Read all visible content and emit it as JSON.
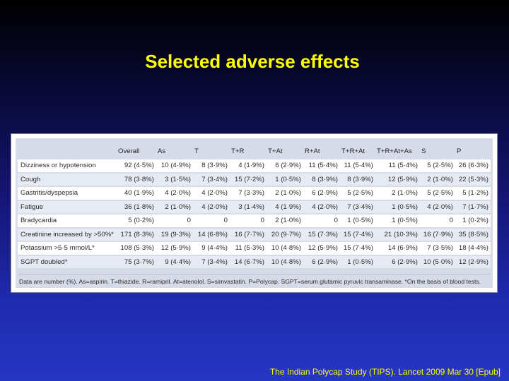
{
  "slide": {
    "title": "Selected adverse effects",
    "citation": "The Indian Polycap Study (TIPS). Lancet 2009 Mar 30 [Epub]"
  },
  "table": {
    "headers": [
      "",
      "Overall",
      "As",
      "T",
      "T+R",
      "T+At",
      "R+At",
      "T+R+At",
      "T+R+At+As",
      "S",
      "P"
    ],
    "rows": [
      [
        "Dizziness or hypotension",
        "92 (4·5%)",
        "10 (4·9%)",
        "8 (3·9%)",
        "4 (1·9%)",
        "6 (2·9%)",
        "11 (5·4%)",
        "11 (5·4%)",
        "11 (5·4%)",
        "5 (2·5%)",
        "26 (6·3%)"
      ],
      [
        "Cough",
        "78 (3·8%)",
        "3 (1·5%)",
        "7 (3·4%)",
        "15 (7·2%)",
        "1 (0·5%)",
        "8 (3·9%)",
        "8 (3·9%)",
        "12 (5·9%)",
        "2 (1·0%)",
        "22 (5·3%)"
      ],
      [
        "Gastritis/dyspepsia",
        "40 (1·9%)",
        "4 (2·0%)",
        "4 (2·0%)",
        "7 (3·3%)",
        "2 (1·0%)",
        "6 (2·9%)",
        "5 (2·5%)",
        "2 (1·0%)",
        "5 (2·5%)",
        "5 (1·2%)"
      ],
      [
        "Fatigue",
        "36 (1·8%)",
        "2 (1·0%)",
        "4 (2·0%)",
        "3 (1·4%)",
        "4 (1·9%)",
        "4 (2·0%)",
        "7 (3·4%)",
        "1 (0·5%)",
        "4 (2·0%)",
        "7 (1·7%)"
      ],
      [
        "Bradycardia",
        "5 (0·2%)",
        "0",
        "0",
        "0",
        "2 (1·0%)",
        "0",
        "1 (0·5%)",
        "1 (0·5%)",
        "0",
        "1 (0·2%)"
      ],
      [
        "Creatinine increased by >50%*",
        "171 (8·3%)",
        "19 (9·3%)",
        "14 (6·8%)",
        "16 (7·7%)",
        "20 (9·7%)",
        "15 (7·3%)",
        "15 (7·4%)",
        "21 (10·3%)",
        "16 (7·9%)",
        "35 (8·5%)"
      ],
      [
        "Potassium >5·5 mmol/L*",
        "108 (5·3%)",
        "12 (5·9%)",
        "9 (4·4%)",
        "11 (5·3%)",
        "10 (4·8%)",
        "12 (5·9%)",
        "15 (7·4%)",
        "14 (6·9%)",
        "7 (3·5%)",
        "18 (4·4%)"
      ],
      [
        "SGPT doubled*",
        "75 (3·7%)",
        "9 (4·4%)",
        "7 (3·4%)",
        "14 (6·7%)",
        "10 (4·8%)",
        "6 (2·9%)",
        "1 (0·5%)",
        "6 (2·9%)",
        "10 (5·0%)",
        "12 (2·9%)"
      ]
    ],
    "footnote": "Data are number (%). As=aspirin. T=thiazide. R=ramipril. At=atenolol. S=simvastatin. P=Polycap. SGPT=serum glutamic pyruvic transaminase. *On the basis of blood tests."
  },
  "colors": {
    "title": "#ffff00",
    "citation": "#ffff00",
    "panel": "#ffffff",
    "inner": "#d6dbe7"
  }
}
